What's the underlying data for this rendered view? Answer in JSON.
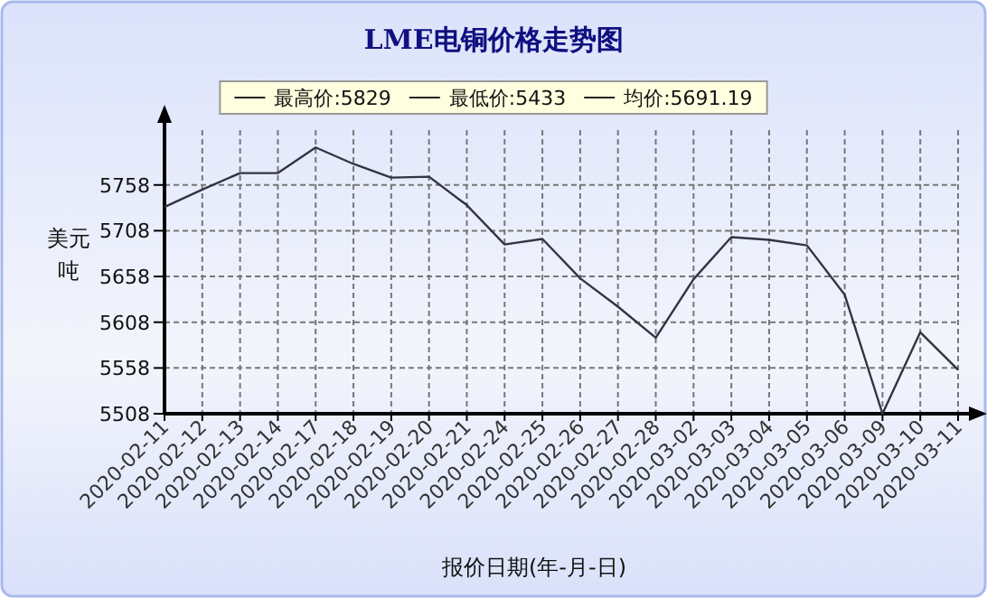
{
  "chart_data": {
    "type": "line",
    "title": "LME电铜价格走势图",
    "xlabel": "报价日期(年-月-日)",
    "ylabel": "美元吨",
    "annotations": [
      "最高价:5829",
      "最低价:5433",
      "均价:5691.19"
    ],
    "categories": [
      "2020-02-11",
      "2020-02-12",
      "2020-02-13",
      "2020-02-14",
      "2020-02-17",
      "2020-02-18",
      "2020-02-19",
      "2020-02-20",
      "2020-02-21",
      "2020-02-24",
      "2020-02-25",
      "2020-02-26",
      "2020-02-27",
      "2020-02-28",
      "2020-03-02",
      "2020-03-03",
      "2020-03-04",
      "2020-03-05",
      "2020-03-06",
      "2020-03-09",
      "2020-03-10",
      "2020-03-11"
    ],
    "series": [
      {
        "color": "#333344",
        "values": [
          5734,
          5753,
          5771,
          5771,
          5799,
          5781,
          5766,
          5767,
          5736,
          5693,
          5699,
          5656,
          5625,
          5591,
          5655,
          5701,
          5698,
          5692,
          5638,
          5508,
          5597,
          5556
        ]
      }
    ],
    "ylim": [
      5508,
      5818
    ],
    "yticks": [
      5508,
      5558,
      5608,
      5658,
      5708,
      5758
    ],
    "grid": true,
    "marker": "none",
    "line_style": "solid"
  }
}
